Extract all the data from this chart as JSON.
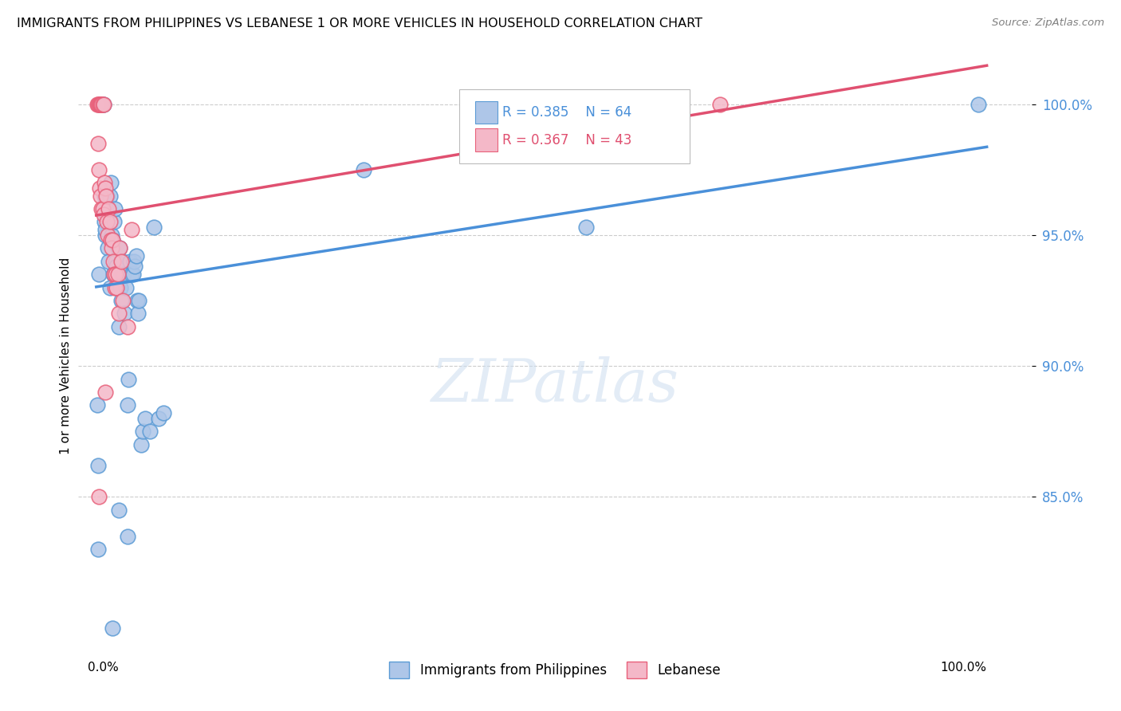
{
  "title": "IMMIGRANTS FROM PHILIPPINES VS LEBANESE 1 OR MORE VEHICLES IN HOUSEHOLD CORRELATION CHART",
  "source": "Source: ZipAtlas.com",
  "ylabel": "1 or more Vehicles in Household",
  "legend1_label": "Immigrants from Philippines",
  "legend2_label": "Lebanese",
  "R1": 0.385,
  "N1": 64,
  "R2": 0.367,
  "N2": 43,
  "blue_fill": "#aec6e8",
  "pink_fill": "#f4b8c8",
  "blue_edge": "#5b9bd5",
  "pink_edge": "#e8607a",
  "blue_line": "#4a90d9",
  "pink_line": "#e05070",
  "blue_scatter": [
    [
      0.001,
      88.5
    ],
    [
      0.002,
      86.2
    ],
    [
      0.003,
      93.5
    ],
    [
      0.004,
      100.0
    ],
    [
      0.005,
      100.0
    ],
    [
      0.005,
      100.0
    ],
    [
      0.006,
      100.0
    ],
    [
      0.006,
      100.0
    ],
    [
      0.007,
      100.0
    ],
    [
      0.008,
      100.0
    ],
    [
      0.009,
      96.5
    ],
    [
      0.009,
      95.5
    ],
    [
      0.01,
      95.0
    ],
    [
      0.01,
      95.2
    ],
    [
      0.011,
      96.0
    ],
    [
      0.012,
      96.5
    ],
    [
      0.012,
      95.8
    ],
    [
      0.013,
      94.5
    ],
    [
      0.014,
      94.0
    ],
    [
      0.015,
      93.0
    ],
    [
      0.015,
      96.5
    ],
    [
      0.016,
      97.0
    ],
    [
      0.017,
      95.0
    ],
    [
      0.018,
      94.8
    ],
    [
      0.019,
      93.5
    ],
    [
      0.02,
      95.5
    ],
    [
      0.021,
      96.0
    ],
    [
      0.022,
      94.0
    ],
    [
      0.023,
      93.8
    ],
    [
      0.024,
      94.5
    ],
    [
      0.025,
      91.5
    ],
    [
      0.026,
      94.5
    ],
    [
      0.027,
      93.0
    ],
    [
      0.028,
      92.5
    ],
    [
      0.029,
      93.5
    ],
    [
      0.03,
      94.0
    ],
    [
      0.031,
      93.5
    ],
    [
      0.032,
      92.0
    ],
    [
      0.033,
      93.0
    ],
    [
      0.035,
      88.5
    ],
    [
      0.036,
      89.5
    ],
    [
      0.038,
      94.0
    ],
    [
      0.04,
      93.5
    ],
    [
      0.041,
      93.5
    ],
    [
      0.042,
      94.0
    ],
    [
      0.043,
      93.8
    ],
    [
      0.045,
      94.2
    ],
    [
      0.046,
      92.5
    ],
    [
      0.047,
      92.0
    ],
    [
      0.048,
      92.5
    ],
    [
      0.05,
      87.0
    ],
    [
      0.052,
      87.5
    ],
    [
      0.055,
      88.0
    ],
    [
      0.06,
      87.5
    ],
    [
      0.065,
      95.3
    ],
    [
      0.07,
      88.0
    ],
    [
      0.075,
      88.2
    ],
    [
      0.002,
      83.0
    ],
    [
      0.025,
      84.5
    ],
    [
      0.035,
      83.5
    ],
    [
      0.018,
      80.0
    ],
    [
      0.3,
      97.5
    ],
    [
      0.55,
      95.3
    ],
    [
      0.99,
      100.0
    ]
  ],
  "pink_scatter": [
    [
      0.001,
      100.0
    ],
    [
      0.002,
      100.0
    ],
    [
      0.003,
      100.0
    ],
    [
      0.004,
      100.0
    ],
    [
      0.005,
      100.0
    ],
    [
      0.005,
      100.0
    ],
    [
      0.006,
      100.0
    ],
    [
      0.006,
      100.0
    ],
    [
      0.007,
      100.0
    ],
    [
      0.008,
      100.0
    ],
    [
      0.002,
      98.5
    ],
    [
      0.003,
      97.5
    ],
    [
      0.004,
      96.8
    ],
    [
      0.005,
      96.5
    ],
    [
      0.006,
      96.0
    ],
    [
      0.007,
      96.0
    ],
    [
      0.008,
      95.8
    ],
    [
      0.009,
      97.0
    ],
    [
      0.01,
      96.8
    ],
    [
      0.011,
      96.5
    ],
    [
      0.012,
      95.5
    ],
    [
      0.013,
      95.0
    ],
    [
      0.014,
      96.0
    ],
    [
      0.015,
      95.5
    ],
    [
      0.016,
      94.8
    ],
    [
      0.017,
      94.5
    ],
    [
      0.018,
      94.8
    ],
    [
      0.019,
      94.0
    ],
    [
      0.02,
      93.5
    ],
    [
      0.021,
      93.0
    ],
    [
      0.022,
      93.5
    ],
    [
      0.023,
      93.0
    ],
    [
      0.024,
      93.5
    ],
    [
      0.025,
      92.0
    ],
    [
      0.026,
      94.5
    ],
    [
      0.028,
      94.0
    ],
    [
      0.03,
      92.5
    ],
    [
      0.035,
      91.5
    ],
    [
      0.01,
      89.0
    ],
    [
      0.003,
      85.0
    ],
    [
      0.575,
      100.0
    ],
    [
      0.7,
      100.0
    ],
    [
      0.04,
      95.2
    ]
  ],
  "xlim": [
    -0.02,
    1.05
  ],
  "ylim": [
    79.0,
    101.8
  ],
  "yticks": [
    85,
    90,
    95,
    100
  ],
  "figsize": [
    14.06,
    8.92
  ],
  "dpi": 100
}
